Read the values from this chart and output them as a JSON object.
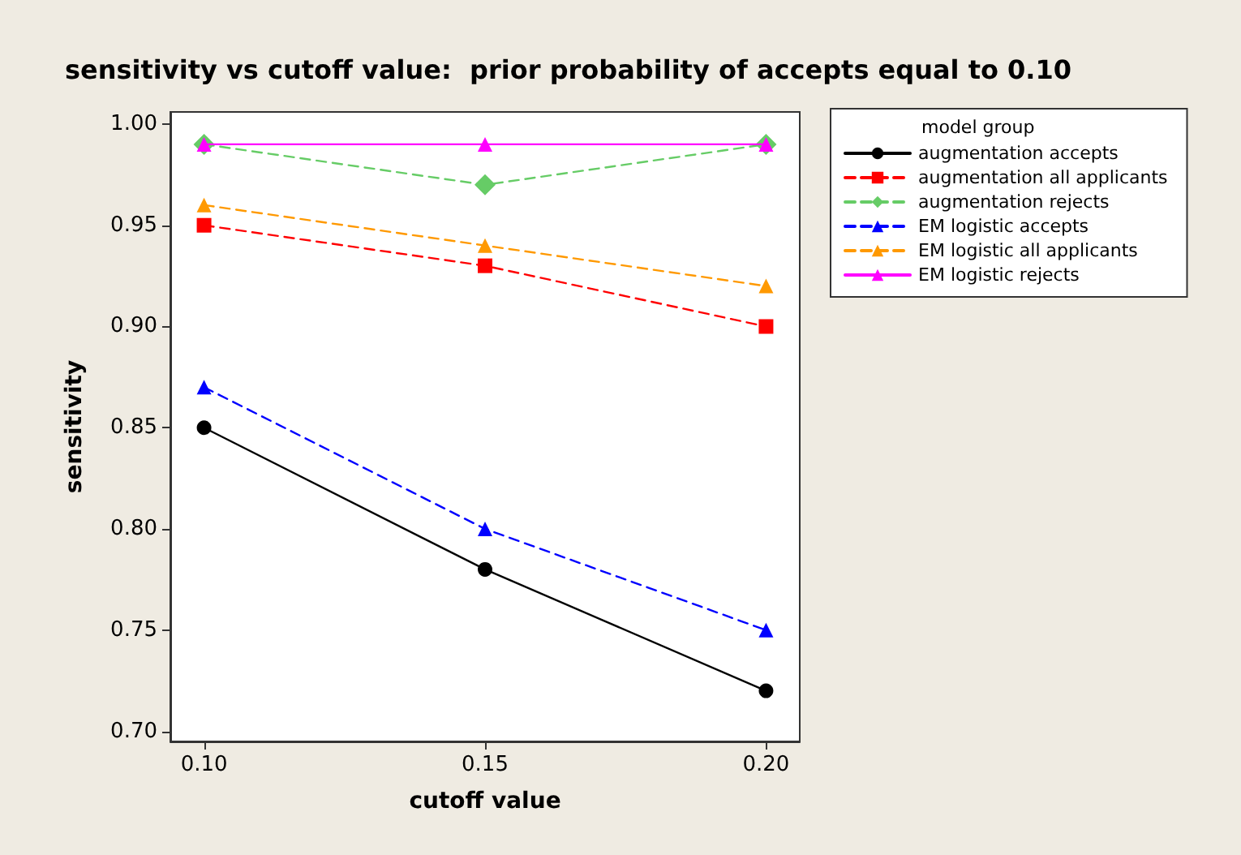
{
  "chart_data": {
    "type": "line",
    "title": "sensitivity vs cutoff value:  prior probability of accepts equal to 0.10",
    "xlabel": "cutoff value",
    "ylabel": "sensitivity",
    "legend_title": "model group",
    "x": [
      0.1,
      0.15,
      0.2
    ],
    "series": [
      {
        "name": "augmentation accepts",
        "color": "#000000",
        "marker": "circle",
        "line_style": "solid",
        "values": [
          0.85,
          0.78,
          0.72
        ]
      },
      {
        "name": "augmentation all applicants",
        "color": "#ff0000",
        "marker": "square",
        "line_style": "dashed",
        "values": [
          0.95,
          0.93,
          0.9
        ]
      },
      {
        "name": "augmentation rejects",
        "color": "#66cc66",
        "marker": "diamond",
        "line_style": "dashed",
        "values": [
          0.99,
          0.97,
          0.99
        ]
      },
      {
        "name": "EM logistic accepts",
        "color": "#0000ff",
        "marker": "triangle",
        "line_style": "dashed",
        "values": [
          0.87,
          0.8,
          0.75
        ]
      },
      {
        "name": "EM logistic all applicants",
        "color": "#ff9900",
        "marker": "triangle",
        "line_style": "dashed",
        "values": [
          0.96,
          0.94,
          0.92
        ]
      },
      {
        "name": "EM logistic rejects",
        "color": "#ff00ff",
        "marker": "triangle",
        "line_style": "solid",
        "values": [
          0.99,
          0.99,
          0.99
        ]
      }
    ],
    "xlim": [
      0.094,
      0.206
    ],
    "xticks": [
      {
        "value": 0.1,
        "label": "0.10"
      },
      {
        "value": 0.15,
        "label": "0.15"
      },
      {
        "value": 0.2,
        "label": "0.20"
      }
    ],
    "ylim": [
      0.695,
      1.006
    ],
    "yticks": [
      {
        "value": 0.7,
        "label": "0.70"
      },
      {
        "value": 0.75,
        "label": "0.75"
      },
      {
        "value": 0.8,
        "label": "0.80"
      },
      {
        "value": 0.85,
        "label": "0.85"
      },
      {
        "value": 0.9,
        "label": "0.90"
      },
      {
        "value": 0.95,
        "label": "0.95"
      },
      {
        "value": 1.0,
        "label": "1.00"
      }
    ],
    "grid": false,
    "legend": "top right"
  }
}
